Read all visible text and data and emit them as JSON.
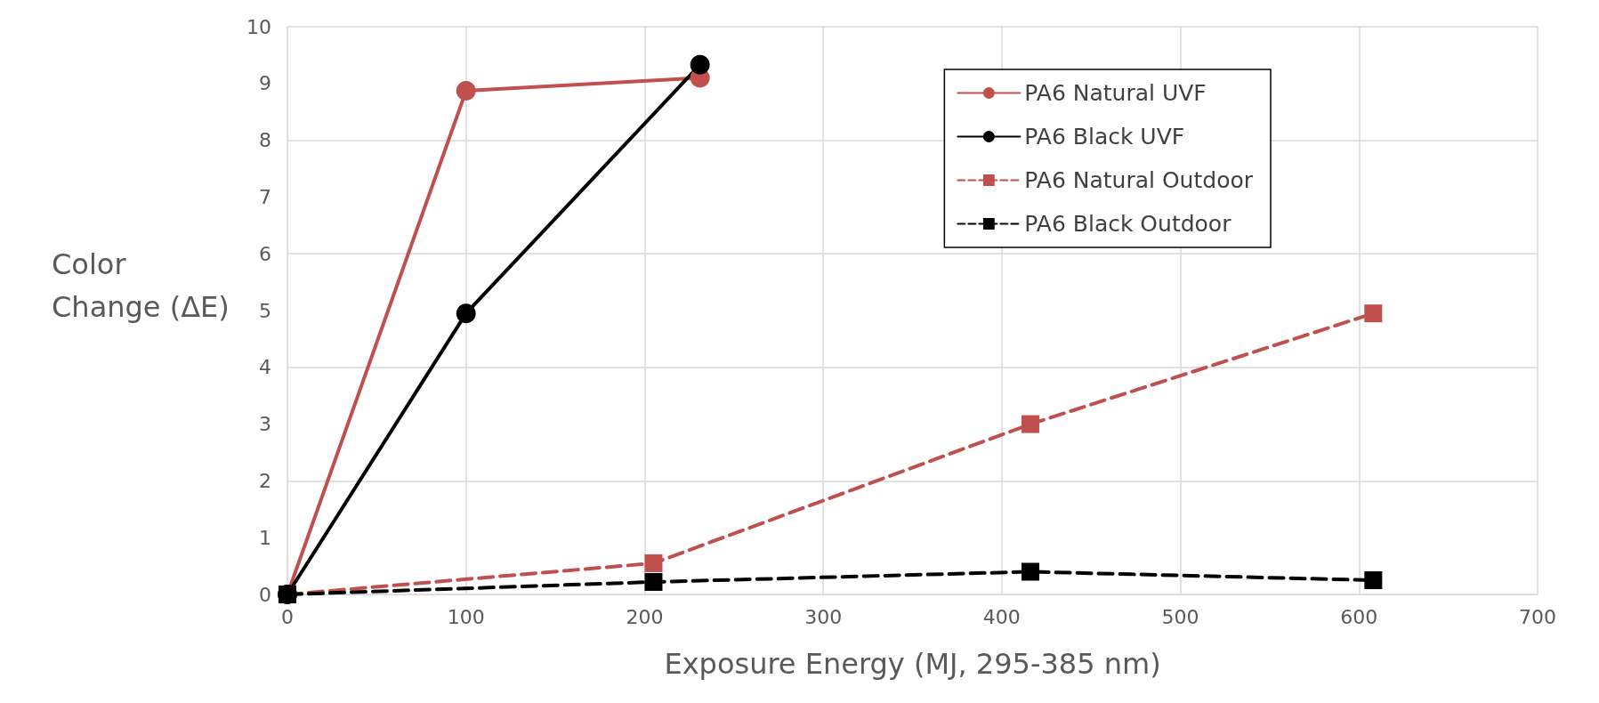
{
  "chart_data": {
    "type": "line",
    "xlabel": "Exposure Energy (MJ, 295-385 nm)",
    "ylabel": "Color\nChange (ΔE)",
    "xlim": [
      0,
      700
    ],
    "xticks": [
      0,
      100,
      200,
      300,
      400,
      500,
      600,
      700
    ],
    "ylim": [
      0,
      10
    ],
    "yticks": [
      0,
      1,
      2,
      3,
      4,
      5,
      6,
      7,
      8,
      9,
      10
    ],
    "grid": true,
    "legend": "top right",
    "series": [
      {
        "name": "PA6 Natural UVF",
        "color": "#c0504d",
        "x": [
          0,
          100,
          231
        ],
        "values": [
          0,
          8.87,
          9.1
        ],
        "marker": "circle",
        "line_style": "solid"
      },
      {
        "name": "PA6 Black UVF",
        "color": "#000000",
        "x": [
          0,
          100,
          231
        ],
        "values": [
          0,
          4.95,
          9.33
        ],
        "marker": "circle",
        "line_style": "solid"
      },
      {
        "name": "PA6 Natural Outdoor",
        "color": "#c0504d",
        "x": [
          0,
          205,
          416,
          608
        ],
        "values": [
          0,
          0.55,
          3.0,
          4.95
        ],
        "marker": "square",
        "line_style": "dashed"
      },
      {
        "name": "PA6 Black Outdoor",
        "color": "#000000",
        "x": [
          0,
          205,
          416,
          608
        ],
        "values": [
          0,
          0.22,
          0.4,
          0.25
        ],
        "marker": "square",
        "line_style": "dashed"
      }
    ]
  }
}
